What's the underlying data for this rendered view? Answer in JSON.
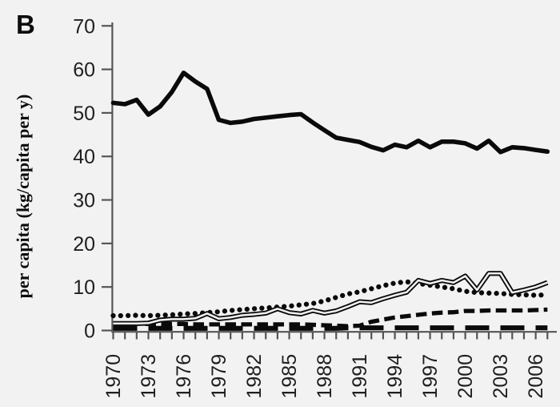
{
  "figure": {
    "panel_label": "B",
    "background": "#f2f2f2",
    "line_color": "#0a0a0a",
    "axis_color": "#555555",
    "tick_label_color": "#1f1f1f",
    "legend": "none"
  },
  "chart_data": {
    "type": "line",
    "title": "",
    "xlabel": "",
    "ylabel": "per capita (kg/capita per y)",
    "grid": false,
    "legend_position": "none",
    "xlim": [
      1970,
      2008
    ],
    "ylim": [
      0,
      70
    ],
    "y_ticks": [
      0,
      10,
      20,
      30,
      40,
      50,
      60,
      70
    ],
    "x_tick_labels": [
      "1970",
      "1973",
      "1976",
      "1979",
      "1982",
      "1985",
      "1988",
      "1991",
      "1994",
      "1997",
      "2000",
      "2003",
      "2006"
    ],
    "x": [
      1970,
      1971,
      1972,
      1973,
      1974,
      1975,
      1976,
      1977,
      1978,
      1979,
      1980,
      1981,
      1982,
      1983,
      1984,
      1985,
      1986,
      1987,
      1988,
      1989,
      1990,
      1991,
      1992,
      1993,
      1994,
      1995,
      1996,
      1997,
      1998,
      1999,
      2000,
      2001,
      2002,
      2003,
      2004,
      2005,
      2006,
      2007
    ],
    "series": [
      {
        "name": "long-dash",
        "style": "long-dash",
        "values": [
          0.5,
          0.5,
          0.5,
          0.5,
          0.5,
          0.5,
          0.5,
          0.5,
          0.5,
          0.5,
          0.5,
          0.5,
          0.5,
          0.5,
          0.5,
          0.5,
          0.5,
          0.5,
          0.5,
          0.5,
          0.6,
          0.6,
          0.6,
          0.6,
          0.6,
          0.6,
          0.6,
          0.6,
          0.6,
          0.6,
          0.6,
          0.6,
          0.6,
          0.6,
          0.6,
          0.6,
          0.6,
          0.6
        ]
      },
      {
        "name": "short-dash",
        "style": "short-dash",
        "values": [
          1.6,
          1.6,
          1.6,
          1.5,
          1.5,
          1.5,
          1.5,
          1.4,
          1.4,
          1.4,
          1.4,
          1.4,
          1.4,
          1.4,
          1.4,
          1.4,
          1.4,
          1.3,
          1.2,
          1.1,
          1.0,
          1.1,
          2.0,
          2.5,
          3.0,
          3.3,
          3.6,
          3.9,
          4.1,
          4.2,
          4.5,
          4.5,
          4.6,
          4.6,
          4.6,
          4.6,
          4.7,
          4.8
        ]
      },
      {
        "name": "dotted",
        "style": "dotted",
        "values": [
          3.4,
          3.4,
          3.5,
          3.4,
          3.5,
          3.6,
          3.8,
          3.9,
          4.1,
          4.3,
          4.6,
          4.8,
          5.0,
          5.2,
          5.4,
          5.6,
          5.9,
          6.2,
          6.8,
          7.6,
          8.4,
          8.9,
          9.6,
          10.3,
          10.9,
          11.2,
          10.8,
          10.4,
          10.0,
          9.6,
          9.0,
          8.7,
          8.6,
          8.5,
          8.3,
          8.2,
          8.1,
          8.2
        ]
      },
      {
        "name": "double-line",
        "style": "double",
        "values": [
          1.6,
          1.6,
          1.6,
          1.7,
          2.4,
          2.6,
          2.6,
          2.8,
          3.9,
          2.7,
          3.0,
          3.5,
          3.7,
          4.0,
          5.0,
          4.1,
          3.8,
          4.6,
          4.0,
          4.5,
          5.5,
          6.6,
          6.4,
          7.3,
          8.1,
          8.8,
          11.5,
          10.8,
          11.5,
          11.0,
          12.5,
          9.3,
          13.1,
          13.1,
          8.7,
          9.3,
          10.0,
          11.0
        ]
      },
      {
        "name": "thick-solid",
        "style": "solid-thick",
        "values": [
          52.3,
          52.0,
          53.0,
          49.6,
          51.5,
          54.8,
          59.2,
          57.2,
          55.5,
          48.4,
          47.7,
          48.0,
          48.6,
          48.9,
          49.2,
          49.5,
          49.7,
          47.8,
          46.0,
          44.3,
          43.8,
          43.3,
          42.2,
          41.4,
          42.7,
          42.1,
          43.6,
          42.1,
          43.4,
          43.4,
          43.0,
          41.8,
          43.6,
          41.0,
          42.1,
          41.9,
          41.5,
          41.1
        ]
      }
    ]
  }
}
